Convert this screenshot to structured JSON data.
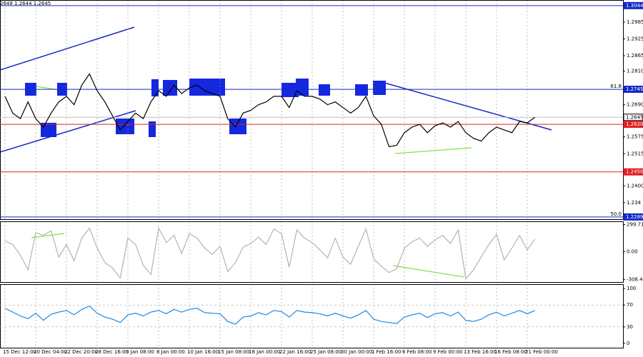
{
  "header": "2648 1.2644 1.2645",
  "chart_data": [
    {
      "type": "line",
      "name": "price",
      "series": [
        {
          "color": "#000000",
          "values": [
            1.272,
            1.266,
            1.264,
            1.27,
            1.264,
            1.261,
            1.266,
            1.27,
            1.272,
            1.269,
            1.276,
            1.28,
            1.274,
            1.27,
            1.265,
            1.26,
            1.263,
            1.266,
            1.264,
            1.27,
            1.274,
            1.272,
            1.276,
            1.273,
            1.275,
            1.276,
            1.274,
            1.273,
            1.272,
            1.264,
            1.261,
            1.266,
            1.267,
            1.269,
            1.27,
            1.272,
            1.272,
            1.268,
            1.274,
            1.272,
            1.272,
            1.271,
            1.269,
            1.27,
            1.268,
            1.266,
            1.268,
            1.272,
            1.265,
            1.262,
            1.254,
            1.2545,
            1.259,
            1.261,
            1.262,
            1.259,
            1.2615,
            1.2625,
            1.261,
            1.263,
            1.259,
            1.257,
            1.256,
            1.259,
            1.261,
            1.26,
            1.259,
            1.263,
            1.2625,
            1.2645
          ]
        }
      ],
      "ylim": [
        1.2281,
        1.3064
      ],
      "yticks": [
        1.2985,
        1.2925,
        1.2865,
        {
          "value": 1.281,
          "label": "1.2810"
        },
        {
          "value": 1.269,
          "label": "1.2690"
        },
        1.2575,
        1.2515,
        {
          "value": 1.24,
          "label": "1.2400"
        },
        1.234
      ],
      "levels": [
        {
          "value": 1.3044,
          "color": "#1428c8"
        },
        {
          "value": 1.2745,
          "color": "#1428c8",
          "note": "61.8"
        },
        {
          "value": 1.2645,
          "color": "#c0c0c0"
        },
        {
          "value": {
            "value": 1.262,
            "label": "1.2620"
          },
          "color": "#e02020"
        },
        {
          "value": {
            "value": 1.245,
            "label": "1.2450"
          },
          "color": "#e02020"
        },
        {
          "value": 1.2289,
          "color": "#1428c8",
          "note": "50.0"
        }
      ],
      "xticks": [
        {
          "value": 0,
          "label": "15 Dec 12:00"
        },
        {
          "value": 4,
          "label": "20 Dec 04:00"
        },
        {
          "value": 8,
          "label": "22 Dec 20:00"
        },
        {
          "value": 12,
          "label": "28 Dec 16:00"
        },
        {
          "value": 16,
          "label": "3 Jan 08:00"
        },
        {
          "value": 20,
          "label": "8 Jan 00:00"
        },
        {
          "value": 24,
          "label": "10 Jan 16:00"
        },
        {
          "value": 28,
          "label": "15 Jan 08:00"
        },
        {
          "value": 32,
          "label": "18 Jan 00:00"
        },
        {
          "value": 36,
          "label": "22 Jan 16:00"
        },
        {
          "value": 40,
          "label": "25 Jan 08:00"
        },
        {
          "value": 44,
          "label": "30 Jan 00:00"
        },
        {
          "value": 48,
          "label": "1 Feb 16:00"
        },
        {
          "value": 52,
          "label": "6 Feb 08:00"
        },
        {
          "value": 56,
          "label": "9 Feb 00:00"
        },
        {
          "value": 60,
          "label": "13 Feb 16:00"
        },
        {
          "value": 64,
          "label": "16 Feb 08:00"
        },
        {
          "value": 68,
          "label": "21 Feb 00:00"
        }
      ]
    },
    {
      "type": "line",
      "name": "cci",
      "series": [
        {
          "color": "#b4b4b4",
          "values": [
            120,
            80,
            -40,
            -200,
            210,
            180,
            230,
            -60,
            80,
            -100,
            150,
            260,
            40,
            -120,
            -180,
            -290,
            150,
            80,
            -150,
            -250,
            260,
            100,
            180,
            -20,
            200,
            150,
            40,
            -30,
            60,
            -220,
            -120,
            50,
            90,
            160,
            80,
            250,
            200,
            -170,
            240,
            150,
            100,
            20,
            -70,
            150,
            -60,
            -140,
            60,
            250,
            -80,
            -160,
            -230,
            -190,
            40,
            110,
            150,
            60,
            130,
            180,
            90,
            240,
            -300,
            -200,
            -60,
            80,
            190,
            -90,
            40,
            180,
            20,
            140
          ]
        }
      ],
      "ylim": [
        -335,
        335
      ],
      "yticks": [
        299.7167,
        {
          "value": 0,
          "label": "0.00"
        },
        -308.465
      ]
    },
    {
      "type": "line",
      "name": "rsi",
      "series": [
        {
          "color": "#1e88e5",
          "values": [
            64,
            57,
            50,
            45,
            55,
            42,
            53,
            57,
            60,
            52,
            62,
            68,
            55,
            48,
            44,
            38,
            52,
            55,
            50,
            57,
            60,
            54,
            62,
            57,
            62,
            64,
            56,
            55,
            54,
            40,
            35,
            48,
            50,
            56,
            52,
            60,
            58,
            48,
            60,
            57,
            56,
            54,
            50,
            55,
            50,
            46,
            52,
            60,
            44,
            40,
            38,
            36,
            48,
            52,
            55,
            47,
            54,
            56,
            50,
            57,
            42,
            40,
            44,
            52,
            57,
            50,
            55,
            60,
            54,
            60
          ]
        }
      ],
      "ylim": [
        -8,
        108
      ],
      "yticks": [
        100,
        70,
        30,
        0
      ]
    }
  ]
}
